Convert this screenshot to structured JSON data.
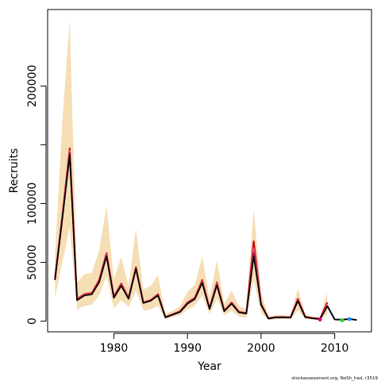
{
  "chart_data": {
    "type": "line",
    "xlabel": "Year",
    "ylabel": "Recruits",
    "xlim": [
      1971,
      2015
    ],
    "ylim": [
      -9000,
      265000
    ],
    "x_ticks": [
      1980,
      1990,
      2000,
      2010
    ],
    "y_ticks": [
      0,
      50000,
      100000,
      150000,
      200000
    ],
    "y_tick_labels": [
      "0",
      "50000",
      "100000",
      "",
      "200000"
    ],
    "credit": "stockassessment.org, NoSh_had, r3519",
    "colors": {
      "band": "#f5deb3",
      "series": [
        "#cc0000",
        "#e75480",
        "#8b1a4a",
        "#000000"
      ],
      "markers": [
        "#e0007a",
        "#32cd32",
        "#1e90ff"
      ]
    },
    "years": [
      1972,
      1973,
      1974,
      1975,
      1976,
      1977,
      1978,
      1979,
      1980,
      1981,
      1982,
      1983,
      1984,
      1985,
      1986,
      1987,
      1988,
      1989,
      1990,
      1991,
      1992,
      1993,
      1994,
      1995,
      1996,
      1997,
      1998,
      1999,
      2000,
      2001,
      2002,
      2003,
      2004,
      2005,
      2006,
      2007,
      2008,
      2009
    ],
    "upper": [
      55000,
      170000,
      257000,
      33000,
      40000,
      41000,
      60000,
      98000,
      36000,
      55000,
      30000,
      79000,
      27000,
      30000,
      39000,
      6000,
      9000,
      13000,
      25000,
      31000,
      55000,
      20000,
      52000,
      15000,
      26000,
      13000,
      10000,
      95000,
      25000,
      4000,
      5000,
      5500,
      4500,
      28000,
      6000,
      4000,
      3500,
      24000
    ],
    "lower": [
      20000,
      50000,
      80000,
      10000,
      13000,
      14000,
      22000,
      38000,
      11000,
      18000,
      12000,
      26000,
      9000,
      10000,
      13000,
      2000,
      3500,
      5000,
      10000,
      13000,
      22000,
      6000,
      19000,
      5000,
      9000,
      4000,
      3000,
      35000,
      7000,
      1000,
      1500,
      2000,
      1500,
      9000,
      2000,
      1300,
      1000,
      6000
    ],
    "series": [
      {
        "values": [
          37000,
          90000,
          147000,
          19000,
          23000,
          24000,
          35000,
          58000,
          21000,
          32000,
          20000,
          46000,
          16000,
          18000,
          23000,
          3500,
          6000,
          8500,
          16000,
          20000,
          35000,
          11000,
          33000,
          9000,
          16000,
          8000,
          7000,
          68000,
          15000,
          2500,
          3500,
          3600,
          3300,
          19000,
          3800,
          2700,
          2200,
          16000
        ]
      },
      {
        "values": [
          36000,
          89000,
          145000,
          18500,
          22500,
          23500,
          34000,
          57000,
          20500,
          31000,
          19500,
          45500,
          15800,
          17800,
          22500,
          3400,
          5800,
          8200,
          15500,
          19500,
          34000,
          10800,
          32000,
          8800,
          15500,
          7800,
          6800,
          62000,
          14500,
          2400,
          3400,
          3500,
          3200,
          18000,
          3600,
          2600,
          2000,
          14000
        ]
      },
      {
        "values": [
          35500,
          88000,
          143000,
          18000,
          22000,
          23000,
          33500,
          56000,
          20000,
          30500,
          19200,
          45000,
          15600,
          17500,
          22000,
          3300,
          5600,
          8000,
          15000,
          19000,
          33000,
          10500,
          31000,
          8600,
          15000,
          7600,
          6600,
          58000,
          14000,
          2300,
          3300,
          3400,
          3100,
          17500,
          3500,
          2500,
          1800,
          13000
        ]
      },
      {
        "values": [
          35000,
          87000,
          141000,
          17800,
          21800,
          22800,
          33000,
          55000,
          19800,
          30000,
          19000,
          44500,
          15400,
          17300,
          21800,
          3200,
          5500,
          7800,
          14800,
          18800,
          32500,
          10300,
          30500,
          8400,
          14800,
          7400,
          6400,
          55000,
          13800,
          2200,
          3200,
          3300,
          3000,
          17000,
          3400,
          2400,
          1700,
          12500
        ]
      }
    ],
    "tail_years": [
      2009,
      2010,
      2011,
      2012,
      2013
    ],
    "tail_values": [
      13000,
      1500,
      1200,
      2000,
      1000
    ],
    "markers": [
      {
        "year": 2008,
        "value": 1500
      },
      {
        "year": 2011,
        "value": 800
      },
      {
        "year": 2012,
        "value": 1800
      }
    ]
  }
}
